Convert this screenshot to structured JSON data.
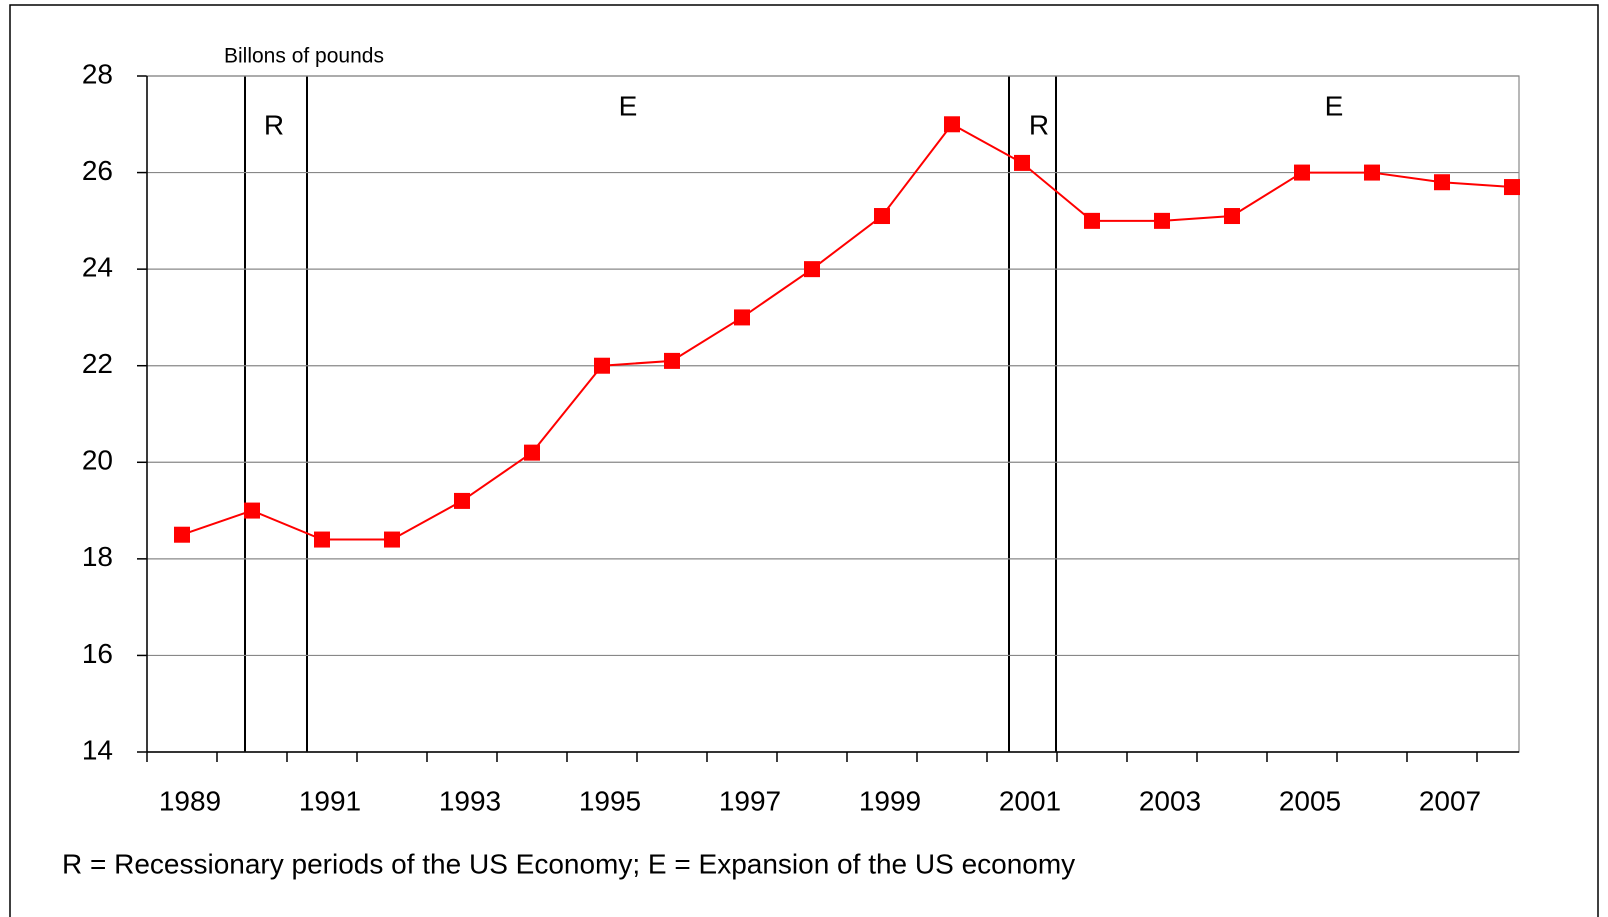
{
  "chart_data": {
    "type": "line",
    "y_label": "Billons of pounds",
    "footnote": "R = Recessionary periods of the US Economy; E = Expansion of the US economy",
    "annotations": [
      "R",
      "E",
      "R",
      "E"
    ],
    "categories": [
      "1989",
      null,
      "1991",
      null,
      "1993",
      null,
      "1995",
      null,
      "1997",
      null,
      "1999",
      null,
      "2001",
      null,
      "2003",
      null,
      "2005",
      null,
      "2007",
      null
    ],
    "series": [
      {
        "name": null,
        "color": "#ff0000",
        "values": [
          18.5,
          19.0,
          18.4,
          18.4,
          19.2,
          20.2,
          22.0,
          22.1,
          23.0,
          24.0,
          25.1,
          27.0,
          26.2,
          25.0,
          25.0,
          25.1,
          26.0,
          26.0,
          25.8,
          25.7
        ]
      }
    ],
    "ylim": [
      14,
      28
    ],
    "yticks": [
      14,
      16,
      18,
      20,
      22,
      24,
      26,
      28
    ],
    "grid": true
  }
}
